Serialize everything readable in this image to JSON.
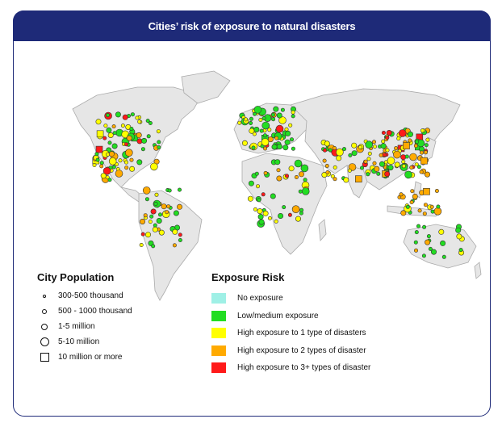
{
  "title": "Cities’ risk of exposure to natural disasters",
  "legend_population": {
    "heading": "City Population",
    "items": [
      {
        "label": "300-500  thousand",
        "symbol": "circle-tiny"
      },
      {
        "label": "500 - 1000  thousand",
        "symbol": "circle-small"
      },
      {
        "label": "1-5 million",
        "symbol": "circle-medium"
      },
      {
        "label": "5-10 million",
        "symbol": "circle-large"
      },
      {
        "label": "10 million or more",
        "symbol": "square"
      }
    ]
  },
  "legend_risk": {
    "heading": "Exposure Risk",
    "items": [
      {
        "label": "No exposure",
        "color": "#9ff0e6"
      },
      {
        "label": "Low/medium exposure",
        "color": "#22dd22"
      },
      {
        "label": "High exposure to 1 type of disasters",
        "color": "#ffff00"
      },
      {
        "label": "High exposure to 2 types of disaster",
        "color": "#ffaa00"
      },
      {
        "label": "High exposure to 3+ types of disaster",
        "color": "#ff1a1a"
      }
    ]
  },
  "colors": {
    "frame": "#1e2a78",
    "land": "#e6e6e6",
    "land_border": "#aaaaaa"
  }
}
